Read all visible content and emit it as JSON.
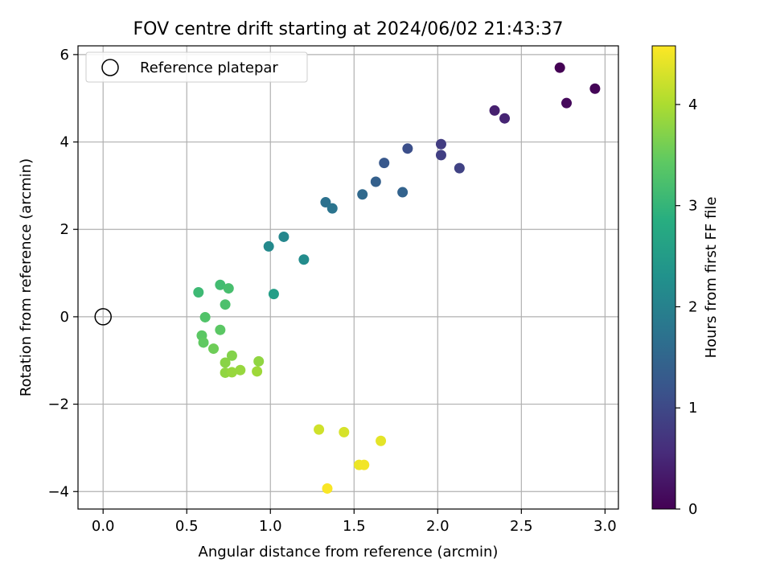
{
  "chart_data": {
    "type": "scatter",
    "title": "FOV centre drift starting at 2024/06/02 21:43:37",
    "xlabel": "Angular distance from reference (arcmin)",
    "ylabel": "Rotation from reference (arcmin)",
    "xlim": [
      -0.15,
      3.08
    ],
    "ylim": [
      -4.4,
      6.2
    ],
    "xticks": [
      0.0,
      0.5,
      1.0,
      1.5,
      2.0,
      2.5,
      3.0
    ],
    "xtick_labels": [
      "0.0",
      "0.5",
      "1.0",
      "1.5",
      "2.0",
      "2.5",
      "3.0"
    ],
    "yticks": [
      -4,
      -2,
      0,
      2,
      4,
      6
    ],
    "ytick_labels": [
      "−4",
      "−2",
      "0",
      "2",
      "4",
      "6"
    ],
    "grid": true,
    "legend": {
      "placement": "top-left",
      "entries": [
        "Reference platepar"
      ]
    },
    "reference_point": {
      "name": "Reference platepar",
      "x": 0.0,
      "y": 0.0,
      "marker": "open-circle"
    },
    "colorbar": {
      "label": "Hours from first FF file",
      "colormap": "viridis",
      "range": [
        0,
        4.58
      ],
      "ticks": [
        0,
        1,
        2,
        3,
        4
      ],
      "tick_labels": [
        "0",
        "1",
        "2",
        "3",
        "4"
      ]
    },
    "points": [
      {
        "x": 2.73,
        "y": 5.7,
        "c": 0.0
      },
      {
        "x": 2.94,
        "y": 5.22,
        "c": 0.05
      },
      {
        "x": 2.77,
        "y": 4.89,
        "c": 0.1
      },
      {
        "x": 2.34,
        "y": 4.72,
        "c": 0.4
      },
      {
        "x": 2.4,
        "y": 4.54,
        "c": 0.45
      },
      {
        "x": 2.02,
        "y": 3.95,
        "c": 0.8
      },
      {
        "x": 2.02,
        "y": 3.7,
        "c": 0.85
      },
      {
        "x": 2.13,
        "y": 3.4,
        "c": 0.9
      },
      {
        "x": 1.82,
        "y": 3.85,
        "c": 1.1
      },
      {
        "x": 1.68,
        "y": 3.52,
        "c": 1.25
      },
      {
        "x": 1.63,
        "y": 3.09,
        "c": 1.4
      },
      {
        "x": 1.79,
        "y": 2.85,
        "c": 1.45
      },
      {
        "x": 1.55,
        "y": 2.8,
        "c": 1.55
      },
      {
        "x": 1.33,
        "y": 2.62,
        "c": 1.7
      },
      {
        "x": 1.37,
        "y": 2.48,
        "c": 1.75
      },
      {
        "x": 1.08,
        "y": 1.83,
        "c": 2.1
      },
      {
        "x": 0.99,
        "y": 1.61,
        "c": 2.15
      },
      {
        "x": 1.2,
        "y": 1.31,
        "c": 2.2
      },
      {
        "x": 1.02,
        "y": 0.52,
        "c": 2.55
      },
      {
        "x": 0.57,
        "y": 0.56,
        "c": 3.1
      },
      {
        "x": 0.7,
        "y": 0.73,
        "c": 3.15
      },
      {
        "x": 0.75,
        "y": 0.65,
        "c": 3.2
      },
      {
        "x": 0.73,
        "y": 0.28,
        "c": 3.25
      },
      {
        "x": 0.61,
        "y": -0.01,
        "c": 3.3
      },
      {
        "x": 0.7,
        "y": -0.3,
        "c": 3.4
      },
      {
        "x": 0.59,
        "y": -0.43,
        "c": 3.4
      },
      {
        "x": 0.6,
        "y": -0.59,
        "c": 3.45
      },
      {
        "x": 0.66,
        "y": -0.73,
        "c": 3.55
      },
      {
        "x": 0.77,
        "y": -0.89,
        "c": 3.7
      },
      {
        "x": 0.73,
        "y": -1.05,
        "c": 3.75
      },
      {
        "x": 0.93,
        "y": -1.02,
        "c": 3.8
      },
      {
        "x": 0.73,
        "y": -1.28,
        "c": 3.8
      },
      {
        "x": 0.77,
        "y": -1.27,
        "c": 3.85
      },
      {
        "x": 0.82,
        "y": -1.22,
        "c": 3.85
      },
      {
        "x": 0.92,
        "y": -1.25,
        "c": 3.9
      },
      {
        "x": 1.29,
        "y": -2.58,
        "c": 4.25
      },
      {
        "x": 1.44,
        "y": -2.64,
        "c": 4.3
      },
      {
        "x": 1.66,
        "y": -2.84,
        "c": 4.4
      },
      {
        "x": 1.53,
        "y": -3.39,
        "c": 4.45
      },
      {
        "x": 1.56,
        "y": -3.39,
        "c": 4.5
      },
      {
        "x": 1.34,
        "y": -3.93,
        "c": 4.55
      }
    ]
  }
}
